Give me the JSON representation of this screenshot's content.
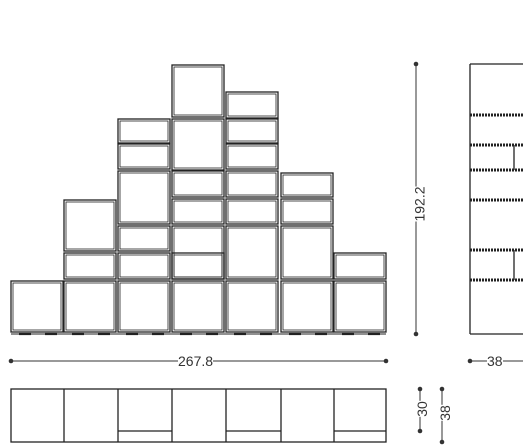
{
  "dimensions": {
    "width": "267.8",
    "height": "192.2",
    "side_depth": "38",
    "plan_depth_small": "30",
    "plan_depth_large": "38"
  },
  "colors": {
    "line": "#222222",
    "dim": "#333333",
    "background": "#ffffff"
  }
}
